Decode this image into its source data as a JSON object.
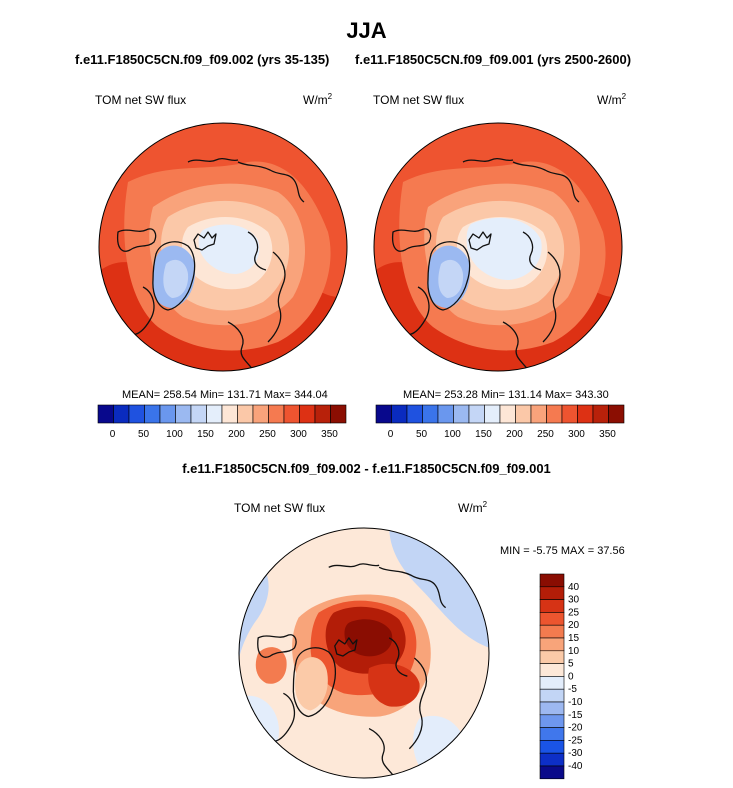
{
  "figure": {
    "title": "JJA",
    "units_label": "W/m",
    "units_exponent": "2"
  },
  "colors": {
    "seq_palette": [
      "#08088c",
      "#0a2bbf",
      "#1f52e0",
      "#3a74ea",
      "#6a97ee",
      "#9bb9f1",
      "#c4d6f6",
      "#e4eefb",
      "#fde6d6",
      "#fbc8a8",
      "#f9a37b",
      "#f57a50",
      "#ee5430",
      "#dd3114",
      "#b8210a",
      "#8b0e02"
    ],
    "diff_palette": [
      "#0a0a8a",
      "#0d2fc7",
      "#1a54e6",
      "#4077ec",
      "#6e97ee",
      "#9db8f0",
      "#c2d5f5",
      "#e3edfb",
      "#fde8d8",
      "#fbcaa8",
      "#f8a47a",
      "#f37b4f",
      "#ec552f",
      "#d63315",
      "#b31d08",
      "#8a0d02"
    ],
    "coast": "#111111"
  },
  "chart_data": [
    {
      "type": "heatmap",
      "projection": "north-polar-stereographic",
      "case_label": "f.e11.F1850C5CN.f09_f09.002 (yrs 35-135)",
      "variable_label": "TOM net SW flux",
      "stats_text": "MEAN= 258.54  Min= 131.71  Max= 344.04",
      "mean": 258.54,
      "min": 131.71,
      "max": 344.04,
      "colorbar": {
        "orientation": "horizontal",
        "levels": [
          0,
          25,
          50,
          75,
          100,
          125,
          150,
          175,
          200,
          225,
          250,
          275,
          300,
          325,
          350
        ],
        "tick_labels": [
          "0",
          "50",
          "100",
          "150",
          "200",
          "250",
          "300",
          "350"
        ]
      }
    },
    {
      "type": "heatmap",
      "projection": "north-polar-stereographic",
      "case_label": "f.e11.F1850C5CN.f09_f09.001 (yrs 2500-2600)",
      "variable_label": "TOM net SW flux",
      "stats_text": "MEAN= 253.28  Min= 131.14  Max= 343.30",
      "mean": 253.28,
      "min": 131.14,
      "max": 343.3,
      "colorbar": {
        "orientation": "horizontal",
        "levels": [
          0,
          25,
          50,
          75,
          100,
          125,
          150,
          175,
          200,
          225,
          250,
          275,
          300,
          325,
          350
        ],
        "tick_labels": [
          "0",
          "50",
          "100",
          "150",
          "200",
          "250",
          "300",
          "350"
        ]
      }
    },
    {
      "type": "heatmap",
      "projection": "north-polar-stereographic",
      "case_label": "f.e11.F1850C5CN.f09_f09.002 - f.e11.F1850C5CN.f09_f09.001",
      "variable_label": "TOM net SW flux",
      "stats_text": "MIN =  -5.75 MAX =  37.56",
      "min": -5.75,
      "max": 37.56,
      "colorbar": {
        "orientation": "vertical",
        "levels": [
          -40,
          -30,
          -25,
          -20,
          -15,
          -10,
          -5,
          0,
          5,
          10,
          15,
          20,
          25,
          30,
          40
        ],
        "tick_labels": [
          "40",
          "30",
          "25",
          "20",
          "15",
          "10",
          "5",
          "0",
          "-5",
          "-10",
          "-15",
          "-20",
          "-25",
          "-30",
          "-40"
        ]
      }
    }
  ]
}
